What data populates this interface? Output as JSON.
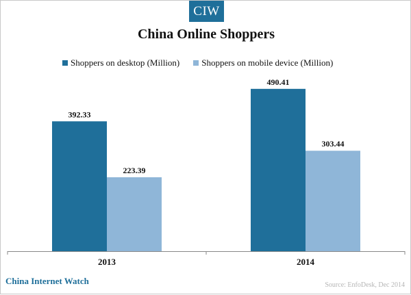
{
  "logo_text": "CIW",
  "footer": {
    "brand": "China Internet Watch",
    "source": "Source: EnfoDesk, Dec 2014"
  },
  "colors": {
    "desktop": "#1f6f9a",
    "mobile": "#8fb6d8",
    "brand": "#1f6f9a"
  },
  "chart_data": {
    "type": "bar",
    "title": "China Online Shoppers",
    "categories": [
      "2013",
      "2014"
    ],
    "series": [
      {
        "name": "Shoppers on desktop (Million)",
        "values": [
          392.33,
          490.41
        ]
      },
      {
        "name": "Shoppers on mobile device (Million)",
        "values": [
          223.39,
          303.44
        ]
      }
    ],
    "data_labels": [
      [
        "392.33",
        "490.41"
      ],
      [
        "223.39",
        "303.44"
      ]
    ],
    "ylim": [
      0,
      550
    ],
    "grid": false,
    "legend": "top"
  }
}
